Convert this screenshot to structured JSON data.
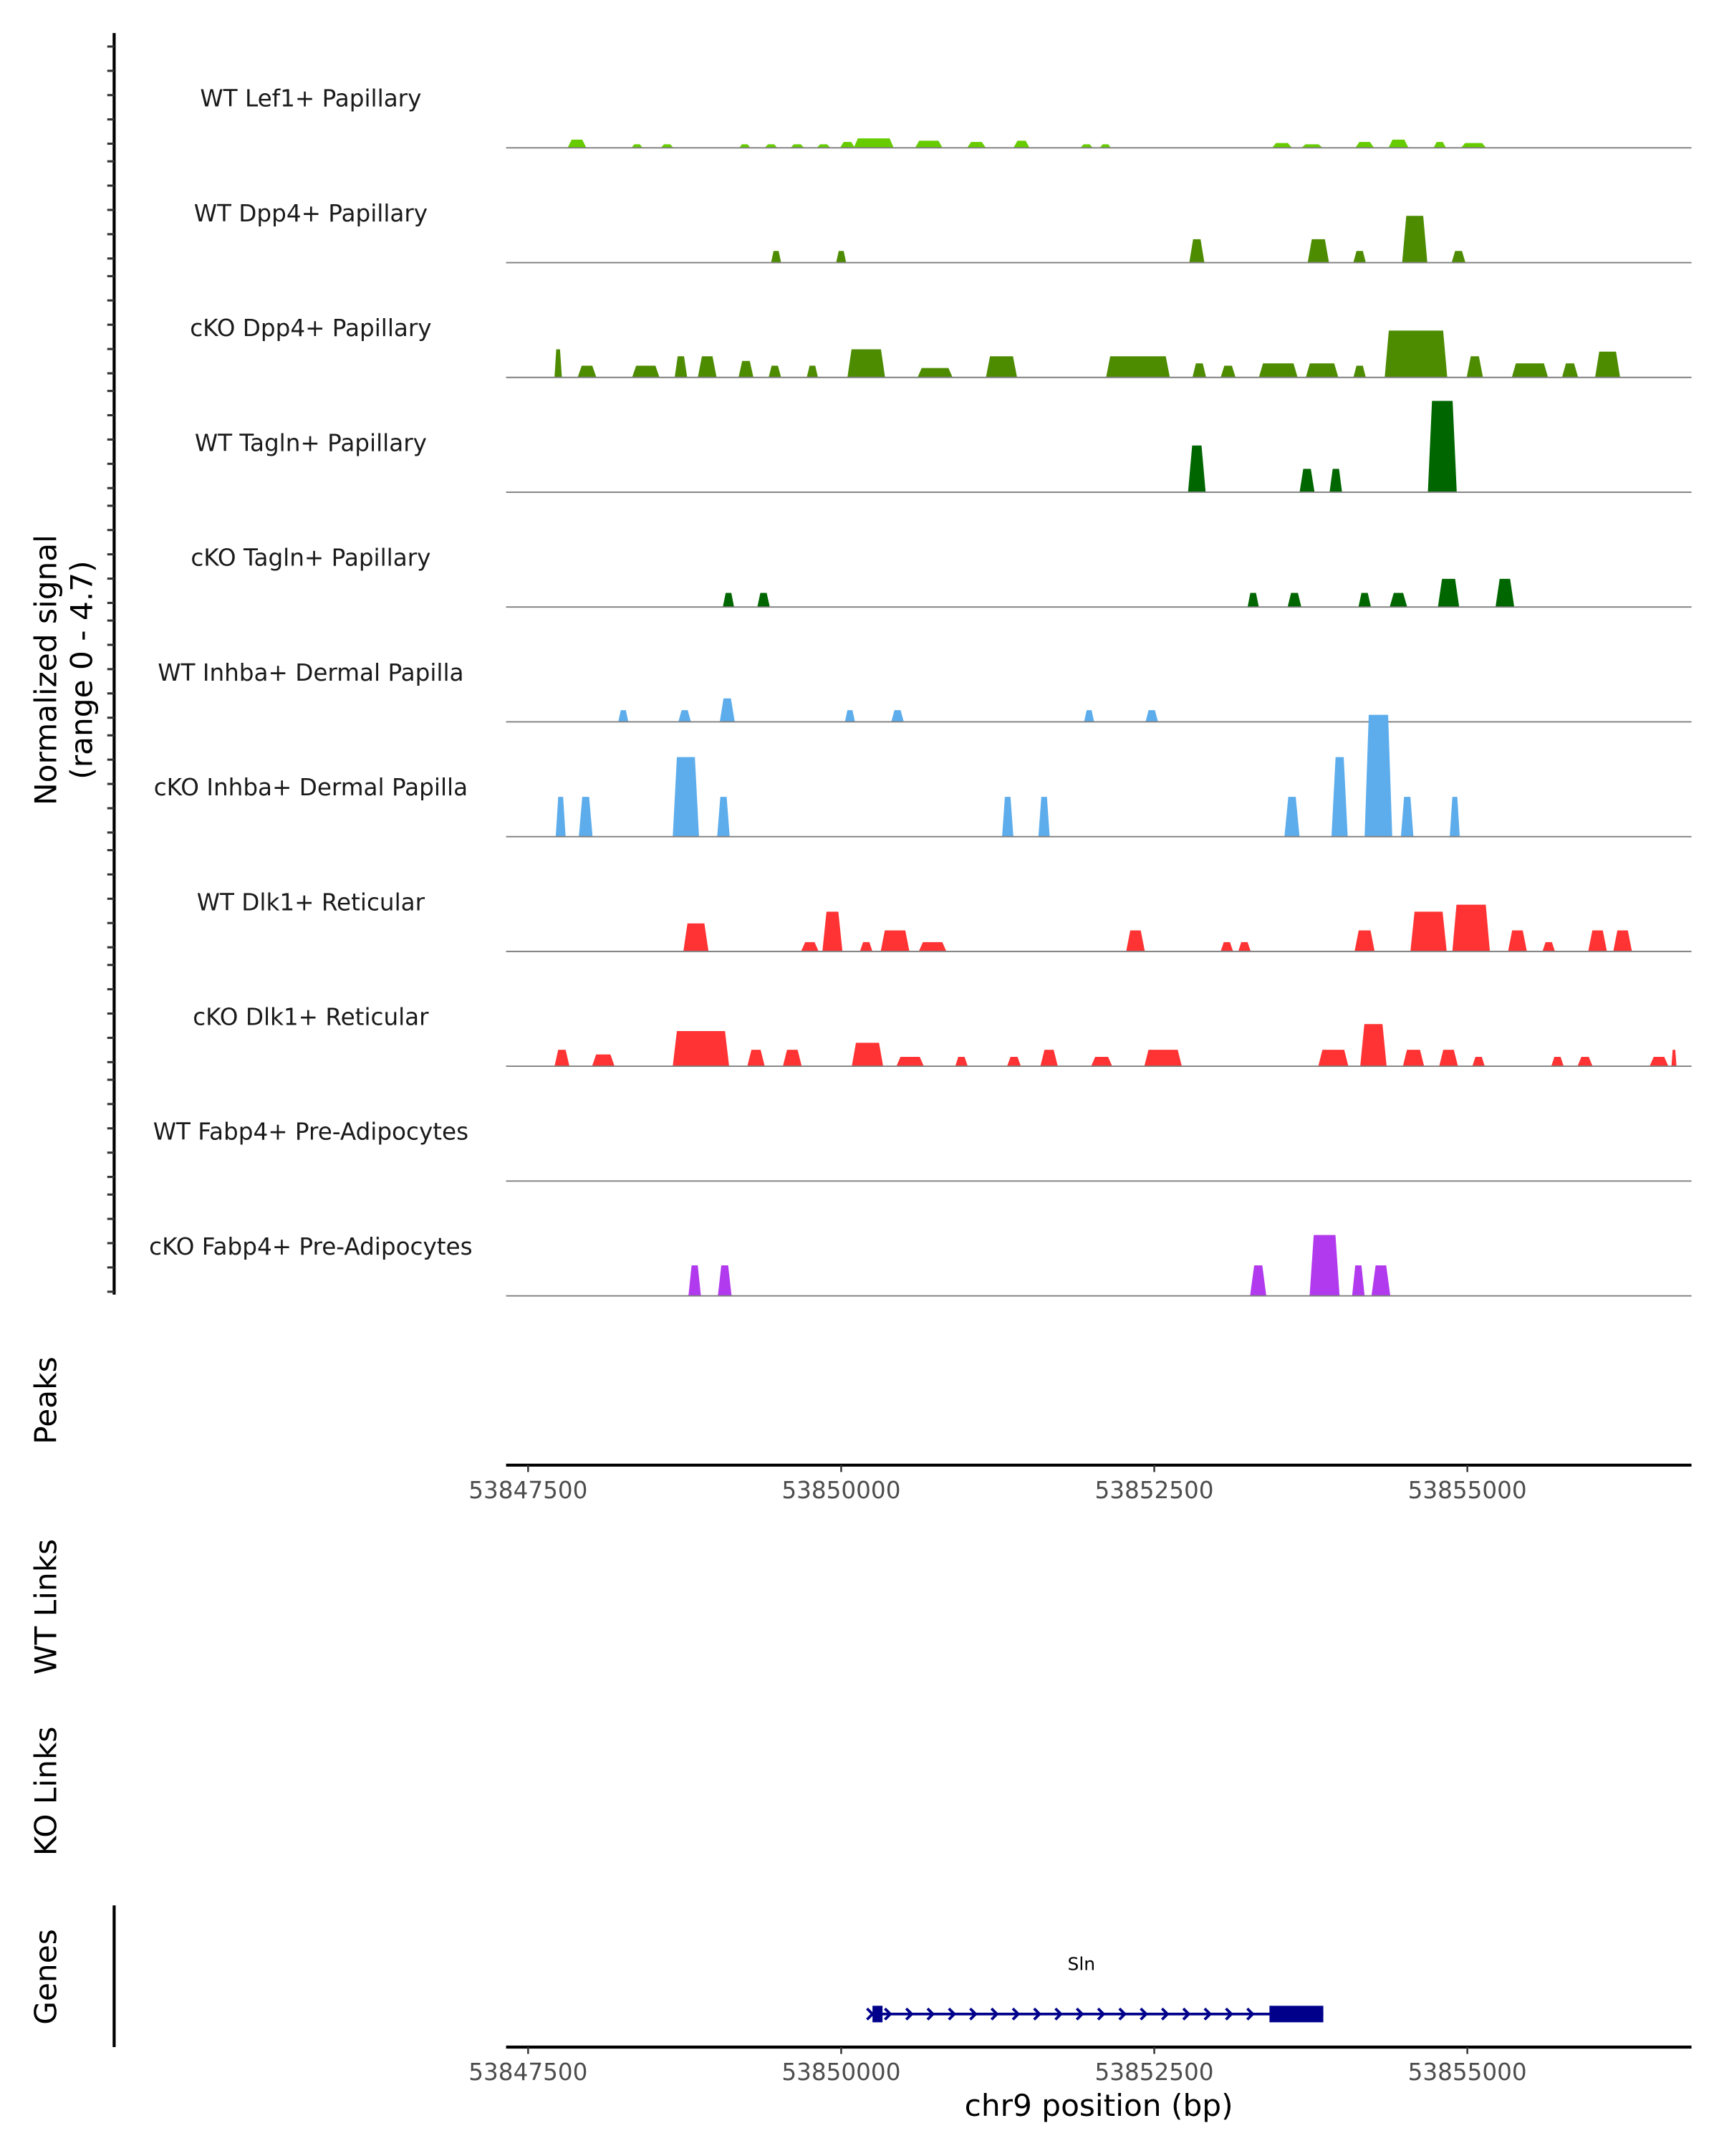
{
  "chart_data": {
    "type": "area",
    "title": "",
    "ylabel": "Normalized signal\n(range 0 - 4.7)",
    "ylabel_lines": [
      "Normalized signal",
      "(range 0 - 4.7)"
    ],
    "ylim": [
      0,
      4.7
    ],
    "xlabel": "chr9 position (bp)",
    "xlim": [
      53847324,
      53856790
    ],
    "xticks": [
      53847500,
      53850000,
      53852500,
      53855000
    ],
    "xtick_labels": [
      "53847500",
      "53850000",
      "53852500",
      "53855000"
    ],
    "grid": false,
    "tracks": [
      {
        "name": "WT Lef1+ Papillary",
        "color": "#66CC00",
        "peaks": [
          [
            53847890,
            150,
            0.35
          ],
          [
            53848370,
            90,
            0.15
          ],
          [
            53848610,
            100,
            0.15
          ],
          [
            53849230,
            90,
            0.15
          ],
          [
            53849440,
            100,
            0.15
          ],
          [
            53849650,
            110,
            0.15
          ],
          [
            53849860,
            110,
            0.15
          ],
          [
            53850050,
            120,
            0.25
          ],
          [
            53850260,
            320,
            0.4
          ],
          [
            53850700,
            220,
            0.3
          ],
          [
            53851080,
            150,
            0.25
          ],
          [
            53851440,
            130,
            0.3
          ],
          [
            53851960,
            100,
            0.15
          ],
          [
            53852110,
            90,
            0.15
          ],
          [
            53853520,
            160,
            0.2
          ],
          [
            53853760,
            170,
            0.15
          ],
          [
            53854180,
            150,
            0.25
          ],
          [
            53854450,
            160,
            0.35
          ],
          [
            53854780,
            100,
            0.25
          ],
          [
            53855050,
            200,
            0.2
          ]
        ]
      },
      {
        "name": "WT Dpp4+ Papillary",
        "color": "#4D8C00",
        "peaks": [
          [
            53849480,
            80,
            0.5
          ],
          [
            53850000,
            80,
            0.5
          ],
          [
            53852840,
            120,
            1.0
          ],
          [
            53853810,
            170,
            1.0
          ],
          [
            53854140,
            100,
            0.5
          ],
          [
            53854580,
            200,
            2.0
          ],
          [
            53854930,
            110,
            0.5
          ]
        ]
      },
      {
        "name": "cKO Dpp4+ Papillary",
        "color": "#4D8C00",
        "peaks": [
          [
            53847740,
            60,
            1.2
          ],
          [
            53847970,
            150,
            0.5
          ],
          [
            53848440,
            220,
            0.5
          ],
          [
            53848720,
            100,
            0.9
          ],
          [
            53848930,
            150,
            0.9
          ],
          [
            53849240,
            120,
            0.7
          ],
          [
            53849470,
            100,
            0.5
          ],
          [
            53849770,
            90,
            0.5
          ],
          [
            53850200,
            300,
            1.2
          ],
          [
            53850750,
            280,
            0.4
          ],
          [
            53851280,
            250,
            0.9
          ],
          [
            53852370,
            510,
            0.9
          ],
          [
            53852860,
            110,
            0.6
          ],
          [
            53853090,
            120,
            0.5
          ],
          [
            53853490,
            310,
            0.6
          ],
          [
            53853840,
            260,
            0.6
          ],
          [
            53854140,
            100,
            0.5
          ],
          [
            53854590,
            500,
            2.0
          ],
          [
            53855060,
            130,
            0.9
          ],
          [
            53855500,
            290,
            0.6
          ],
          [
            53855820,
            130,
            0.6
          ],
          [
            53856120,
            200,
            1.1
          ]
        ]
      },
      {
        "name": "WT Tagln+ Papillary",
        "color": "#006600",
        "peaks": [
          [
            53852840,
            140,
            2.0
          ],
          [
            53853720,
            120,
            1.0
          ],
          [
            53853950,
            100,
            1.0
          ],
          [
            53854800,
            230,
            3.9
          ]
        ]
      },
      {
        "name": "cKO Tagln+ Papillary",
        "color": "#006600",
        "peaks": [
          [
            53849100,
            90,
            0.6
          ],
          [
            53849380,
            100,
            0.6
          ],
          [
            53853290,
            90,
            0.6
          ],
          [
            53853620,
            110,
            0.6
          ],
          [
            53854180,
            100,
            0.6
          ],
          [
            53854450,
            140,
            0.6
          ],
          [
            53854850,
            170,
            1.2
          ],
          [
            53855300,
            150,
            1.2
          ]
        ]
      },
      {
        "name": "WT Inhba+ Dermal Papilla",
        "color": "#5DADEC",
        "peaks": [
          [
            53848260,
            80,
            0.5
          ],
          [
            53848750,
            100,
            0.5
          ],
          [
            53849090,
            120,
            1.0
          ],
          [
            53850070,
            80,
            0.5
          ],
          [
            53850450,
            100,
            0.5
          ],
          [
            53851980,
            80,
            0.5
          ],
          [
            53852480,
            100,
            0.5
          ]
        ]
      },
      {
        "name": "cKO Inhba+ Dermal Papilla",
        "color": "#5DADEC",
        "peaks": [
          [
            53847760,
            80,
            1.7
          ],
          [
            53847960,
            110,
            1.7
          ],
          [
            53848760,
            210,
            3.4
          ],
          [
            53849060,
            100,
            1.7
          ],
          [
            53851330,
            90,
            1.7
          ],
          [
            53851620,
            90,
            1.7
          ],
          [
            53853600,
            120,
            1.7
          ],
          [
            53853980,
            130,
            3.4
          ],
          [
            53854290,
            220,
            5.2
          ],
          [
            53854520,
            100,
            1.7
          ],
          [
            53854900,
            80,
            1.7
          ]
        ]
      },
      {
        "name": "WT Dlk1+ Reticular",
        "color": "#FF3333",
        "peaks": [
          [
            53848840,
            200,
            1.2
          ],
          [
            53849750,
            140,
            0.4
          ],
          [
            53849930,
            160,
            1.7
          ],
          [
            53850200,
            100,
            0.4
          ],
          [
            53850430,
            230,
            0.9
          ],
          [
            53850730,
            220,
            0.4
          ],
          [
            53852350,
            150,
            0.9
          ],
          [
            53853080,
            100,
            0.4
          ],
          [
            53853220,
            100,
            0.4
          ],
          [
            53854180,
            160,
            0.9
          ],
          [
            53854690,
            290,
            1.7
          ],
          [
            53855030,
            300,
            2.0
          ],
          [
            53855400,
            150,
            0.9
          ],
          [
            53855650,
            100,
            0.4
          ],
          [
            53856040,
            150,
            0.9
          ],
          [
            53856240,
            150,
            0.9
          ]
        ]
      },
      {
        "name": "cKO Dlk1+ Reticular",
        "color": "#FF3333",
        "peaks": [
          [
            53847770,
            120,
            0.7
          ],
          [
            53848100,
            180,
            0.5
          ],
          [
            53848880,
            450,
            1.5
          ],
          [
            53849320,
            140,
            0.7
          ],
          [
            53849610,
            150,
            0.7
          ],
          [
            53850210,
            250,
            1.0
          ],
          [
            53850550,
            220,
            0.4
          ],
          [
            53850960,
            100,
            0.4
          ],
          [
            53851380,
            110,
            0.4
          ],
          [
            53851660,
            140,
            0.7
          ],
          [
            53852080,
            170,
            0.4
          ],
          [
            53852570,
            300,
            0.7
          ],
          [
            53853930,
            240,
            0.7
          ],
          [
            53854250,
            210,
            1.8
          ],
          [
            53854570,
            170,
            0.7
          ],
          [
            53854850,
            150,
            0.7
          ],
          [
            53855090,
            100,
            0.4
          ],
          [
            53855720,
            100,
            0.4
          ],
          [
            53855940,
            120,
            0.4
          ],
          [
            53856530,
            150,
            0.4
          ],
          [
            53856650,
            40,
            0.7
          ]
        ]
      },
      {
        "name": "WT Fabp4+ Pre-Adipocytes",
        "color": "#B23AEE",
        "peaks": []
      },
      {
        "name": "cKO Fabp4+ Pre-Adipocytes",
        "color": "#B23AEE",
        "peaks": [
          [
            53848830,
            100,
            1.3
          ],
          [
            53849070,
            110,
            1.3
          ],
          [
            53853330,
            130,
            1.3
          ],
          [
            53853860,
            240,
            2.6
          ],
          [
            53854130,
            100,
            1.3
          ],
          [
            53854310,
            150,
            1.3
          ]
        ]
      }
    ],
    "side_labels": [
      "Peaks",
      "WT Links",
      "KO Links",
      "Genes"
    ],
    "genes": [
      {
        "name": "Sln",
        "start": 53850250,
        "end": 53853850,
        "strand": "+",
        "color": "#00008B",
        "exons": [
          [
            53850250,
            53850330
          ],
          [
            53853420,
            53853850
          ]
        ]
      }
    ]
  }
}
